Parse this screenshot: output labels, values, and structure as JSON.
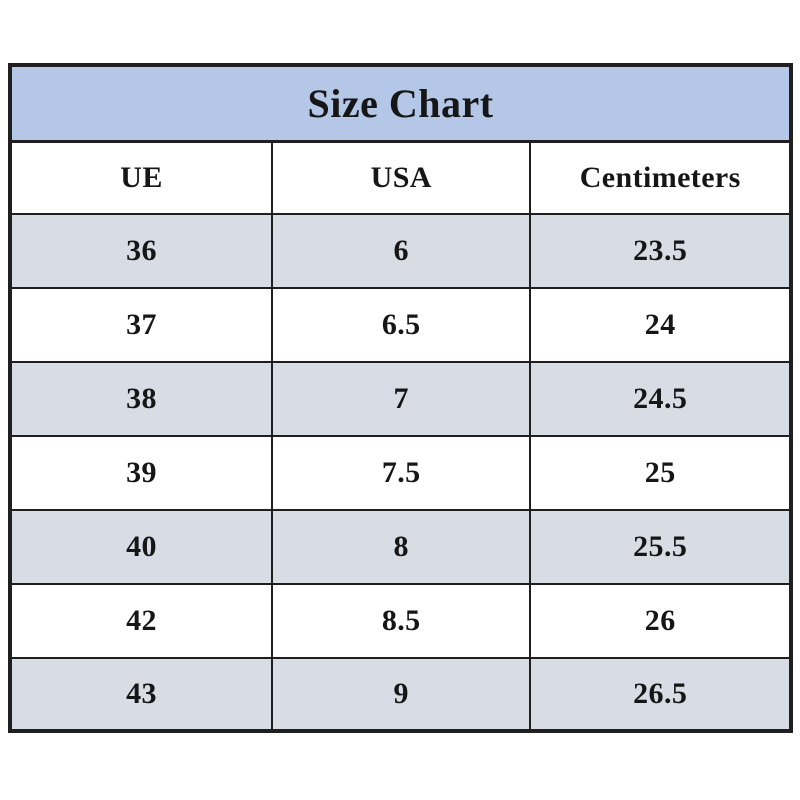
{
  "chart_data": {
    "type": "table",
    "title": "Size Chart",
    "columns": [
      "UE",
      "USA",
      "Centimeters"
    ],
    "rows": [
      [
        "36",
        "6",
        "23.5"
      ],
      [
        "37",
        "6.5",
        "24"
      ],
      [
        "38",
        "7",
        "24.5"
      ],
      [
        "39",
        "7.5",
        "25"
      ],
      [
        "40",
        "8",
        "25.5"
      ],
      [
        "42",
        "8.5",
        "26"
      ],
      [
        "43",
        "9",
        "26.5"
      ]
    ]
  },
  "colors": {
    "title_bg": "#b4c7e7",
    "alt_bg": "#d7dce5",
    "border": "#1f1f1f",
    "text": "#161616"
  }
}
